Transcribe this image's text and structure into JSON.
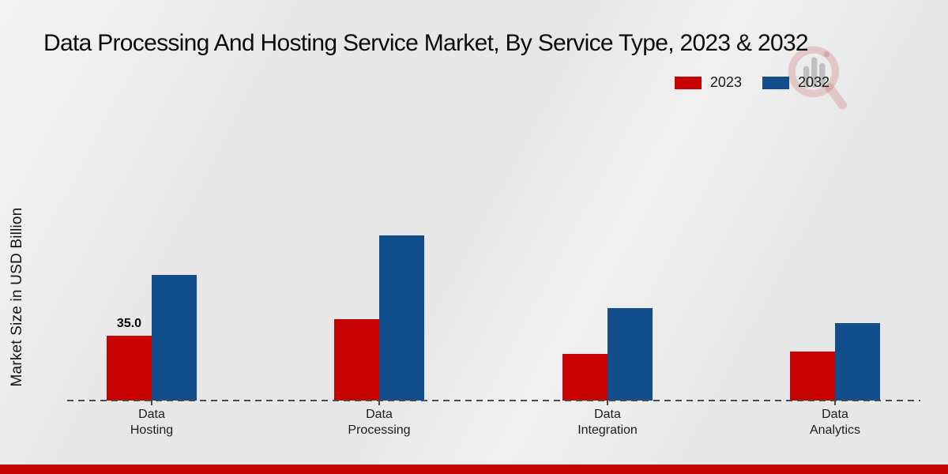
{
  "title": "Data Processing And Hosting Service Market, By Service Type, 2023 & 2032",
  "y_axis_label": "Market Size in USD Billion",
  "legend": {
    "position": "top-right",
    "items": [
      {
        "label": "2023",
        "color": "#c80202"
      },
      {
        "label": "2032",
        "color": "#124e8c"
      }
    ]
  },
  "chart_data": {
    "type": "bar",
    "title": "Data Processing And Hosting Service Market, By Service Type, 2023 & 2032",
    "categories": [
      "Data Hosting",
      "Data Processing",
      "Data Integration",
      "Data Analytics"
    ],
    "series": [
      {
        "name": "2023",
        "color": "#c80202",
        "values": [
          35.0,
          44.0,
          25.0,
          26.5
        ]
      },
      {
        "name": "2032",
        "color": "#124e8c",
        "values": [
          68.0,
          89.0,
          50.0,
          42.0
        ]
      }
    ],
    "bar_labels": [
      {
        "series_index": 0,
        "category_index": 0,
        "text": "35.0"
      }
    ],
    "xlabel": "",
    "ylabel": "Market Size in USD Billion",
    "ylim": [
      0,
      100
    ],
    "grid": false,
    "y_axis_ticks_visible": false,
    "x_axis_style": "dashed",
    "legend_position": "top-right"
  },
  "colors": {
    "background": "#e7e7e7",
    "axis": "#4c4c4c",
    "footer_band": "#c50404",
    "title_text": "#0c0c0c"
  },
  "footer": {
    "band_present": true
  },
  "watermark": {
    "name": "brand-logo-watermark"
  }
}
